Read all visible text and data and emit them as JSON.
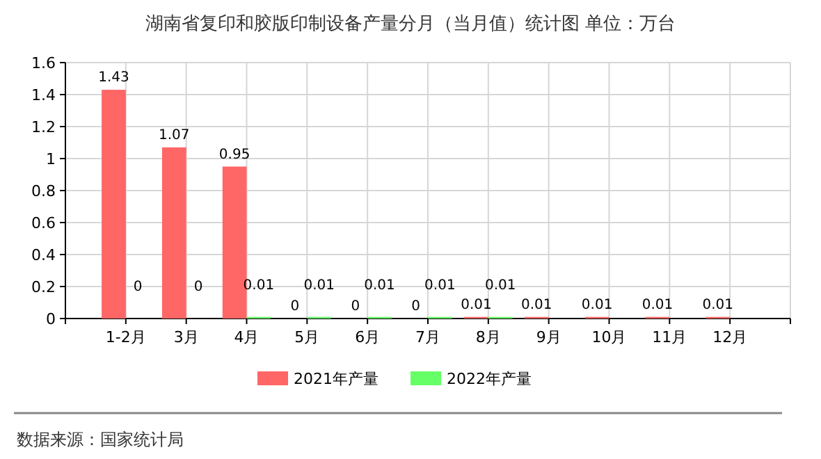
{
  "chart_data": {
    "type": "bar",
    "title": "湖南省复印和胶版印制设备产量分月（当月值）统计图 单位：万台",
    "categories": [
      "1-2月",
      "3月",
      "4月",
      "5月",
      "6月",
      "7月",
      "8月",
      "9月",
      "10月",
      "11月",
      "12月"
    ],
    "series": [
      {
        "name": "2021年产量",
        "color": "#ff6666",
        "values": [
          1.43,
          1.07,
          0.95,
          0,
          0,
          0,
          0.01,
          0.01,
          0.01,
          0.01,
          0.01
        ]
      },
      {
        "name": "2022年产量",
        "color": "#66ff66",
        "values": [
          0,
          0,
          0.01,
          0.01,
          0.01,
          0.01,
          0.01,
          null,
          null,
          null,
          null
        ]
      }
    ],
    "ylim": [
      0,
      1.6
    ],
    "yticks": [
      0,
      0.2,
      0.4,
      0.6,
      0.8,
      1,
      1.2,
      1.4,
      1.6
    ],
    "grid": true,
    "legend": "bottom",
    "data_labels": true,
    "annotations": [
      "数据来源：国家统计局"
    ]
  }
}
